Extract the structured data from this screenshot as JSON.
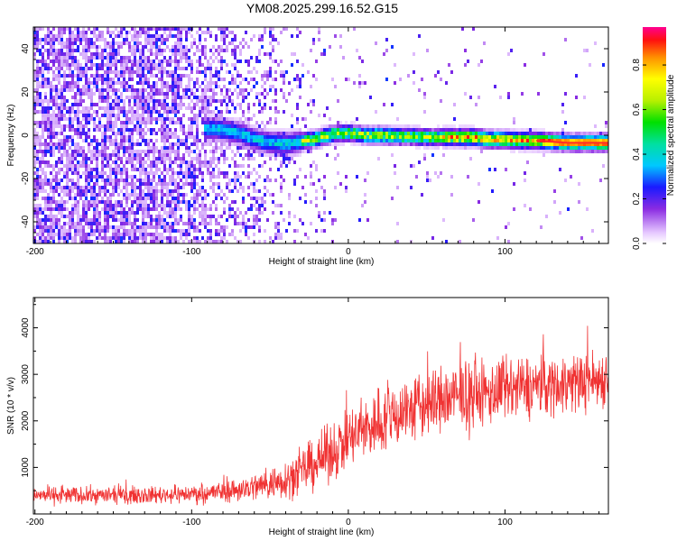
{
  "title": "YM08.2025.299.16.52.G15",
  "chart_data": [
    {
      "type": "heatmap",
      "xlabel": "Height of straight line (km)",
      "ylabel": "Frequency (Hz)",
      "xlim": [
        -201,
        166
      ],
      "ylim": [
        -50,
        50
      ],
      "x_ticks": [
        -200,
        -100,
        0,
        100
      ],
      "y_ticks": [
        -40,
        -20,
        0,
        20,
        40
      ],
      "colorbar": {
        "label": "Normalized spectral amplitude",
        "range": [
          0,
          0.97
        ],
        "ticks": [
          0.0,
          0.2,
          0.4,
          0.6,
          0.8
        ]
      },
      "ridge": {
        "x": [
          -92,
          -80,
          -70,
          -60,
          -50,
          -40,
          -30,
          -20,
          -10,
          0,
          10,
          20,
          30,
          40,
          50,
          60,
          70,
          80,
          90,
          100,
          110,
          120,
          130,
          140,
          150,
          160,
          166
        ],
        "frequency": [
          3,
          2.5,
          1,
          -2,
          -3.5,
          -4,
          -3,
          -1.5,
          0.5,
          1,
          0,
          0,
          -0.5,
          -0.5,
          -1,
          -1,
          -1,
          -1,
          -2,
          -2,
          -2.5,
          -2.5,
          -3,
          -3.5,
          -3.5,
          -3.5,
          -3.5
        ]
      }
    },
    {
      "type": "line",
      "xlabel": "Height of straight line (km)",
      "ylabel": "SNR (10 * v/v)",
      "xlim": [
        -201,
        166
      ],
      "ylim": [
        0,
        4650
      ],
      "x_ticks": [
        -200,
        -100,
        0,
        100
      ],
      "y_ticks": [
        1000,
        2000,
        3000,
        4000
      ],
      "line_color": "#f03232",
      "envelope": {
        "x": [
          -201,
          -180,
          -160,
          -140,
          -120,
          -100,
          -90,
          -80,
          -70,
          -60,
          -50,
          -40,
          -30,
          -20,
          -10,
          0,
          10,
          20,
          30,
          40,
          50,
          60,
          70,
          80,
          90,
          100,
          110,
          120,
          130,
          140,
          150,
          160,
          166
        ],
        "mean": [
          400,
          400,
          400,
          400,
          410,
          430,
          450,
          480,
          520,
          580,
          650,
          750,
          900,
          1100,
          1350,
          1600,
          1800,
          2000,
          2150,
          2250,
          2350,
          2450,
          2500,
          2550,
          2600,
          2650,
          2700,
          2750,
          2780,
          2800,
          2850,
          2900,
          2950
        ],
        "spread": [
          350,
          350,
          350,
          350,
          360,
          380,
          420,
          460,
          520,
          600,
          700,
          820,
          950,
          1100,
          1200,
          1300,
          1400,
          1500,
          1500,
          1500,
          1500,
          1500,
          1500,
          1450,
          1400,
          1400,
          1350,
          1350,
          1300,
          1300,
          1250,
          1250,
          1250
        ]
      }
    }
  ]
}
